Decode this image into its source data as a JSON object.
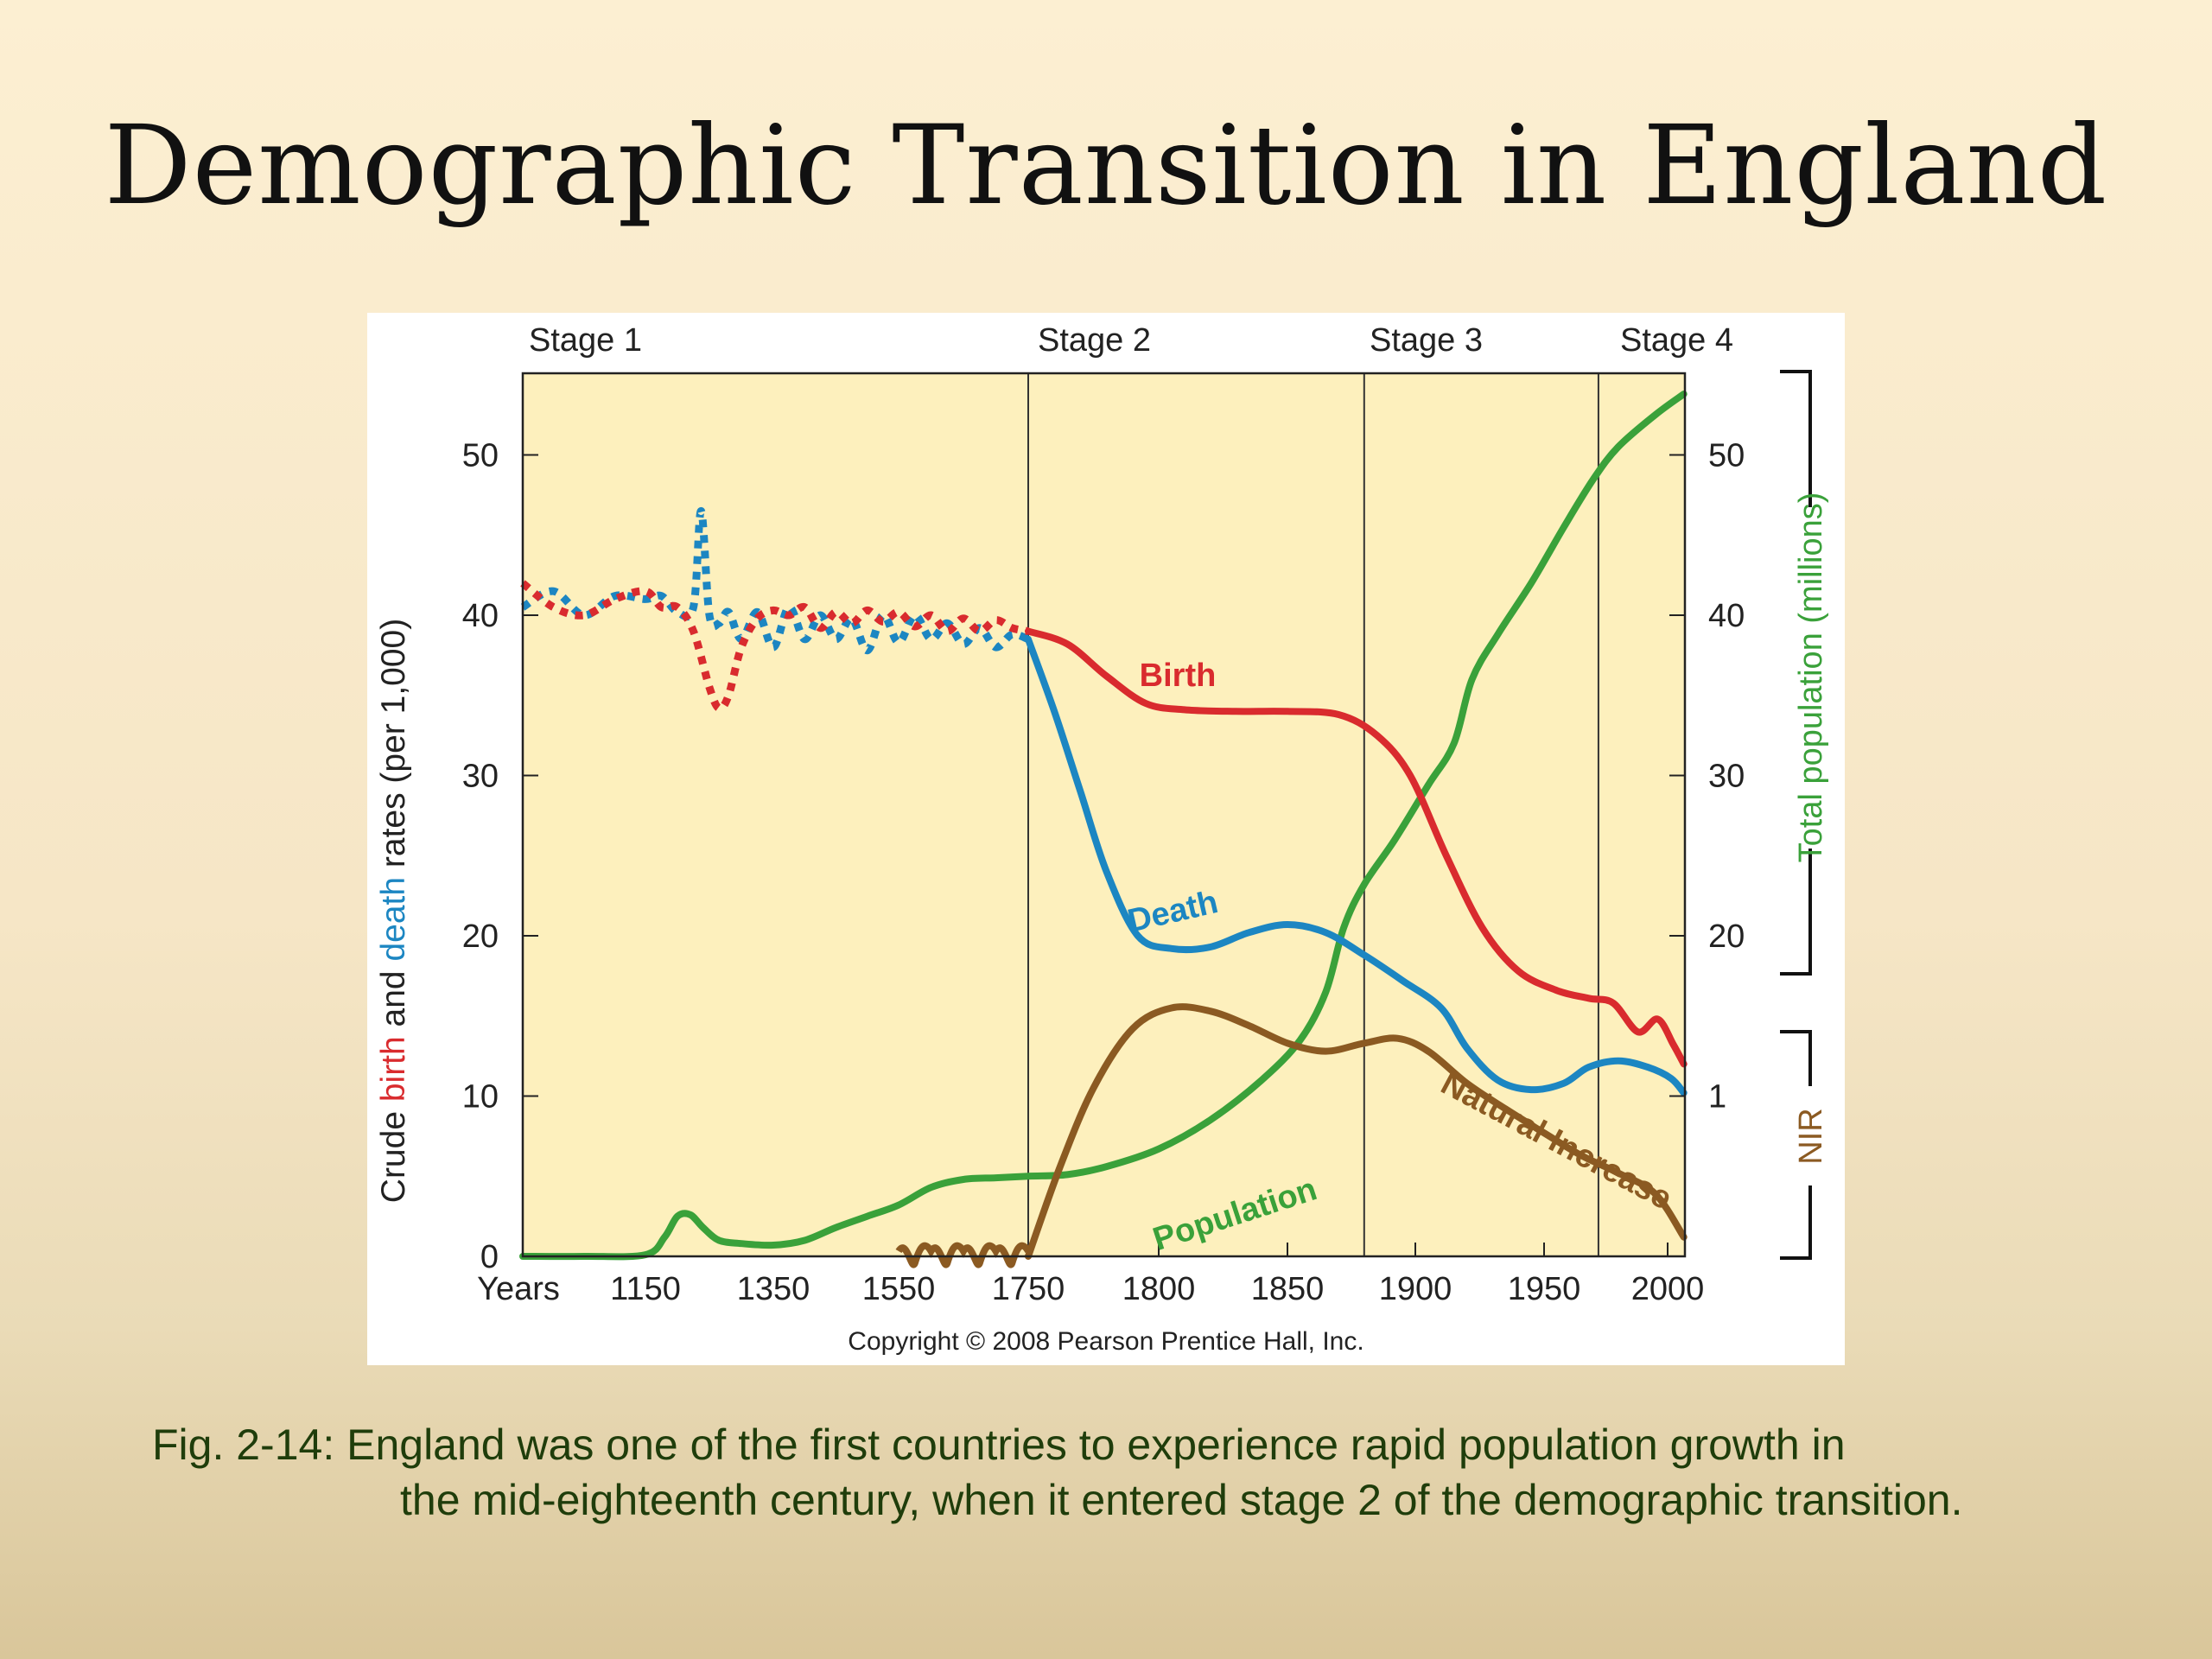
{
  "slide": {
    "title": "Demographic Transition in England",
    "caption_lead": "Fig. 2-14:  England was one of the first countries to experience rapid population growth in",
    "caption_rest": "the mid-eighteenth century, when it entered stage 2 of the demographic transition."
  },
  "colors": {
    "birth": "#d92b2e",
    "death": "#1c86c2",
    "population": "#3aa13a",
    "natural_increase": "#8b5a22",
    "plot_bg": "#fdf0bd",
    "axis": "#222222"
  },
  "chart_data": {
    "type": "line",
    "stages": [
      "Stage 1",
      "Stage 2",
      "Stage 3",
      "Stage 4"
    ],
    "stage_boundaries_years": [
      1750,
      1880,
      1972
    ],
    "x": {
      "label": "Years",
      "ticks": [
        "1150",
        "1350",
        "1550",
        "1750",
        "1800",
        "1850",
        "1900",
        "1950",
        "2000"
      ],
      "note": "axis segment 1050–1750 compressed; 1750–2015 expanded"
    },
    "y_left": {
      "label_parts": [
        "Crude ",
        "birth",
        " and ",
        "death",
        " rates (per 1,000)"
      ],
      "ticks": [
        "0",
        "10",
        "20",
        "30",
        "40",
        "50"
      ],
      "range": [
        0,
        55
      ]
    },
    "y_right_population": {
      "label": "Total population (millions)",
      "ticks": [
        "20",
        "30",
        "40",
        "50"
      ]
    },
    "y_right_nir": {
      "label": "NIR",
      "ticks": [
        "1"
      ]
    },
    "copyright": "Copyright © 2008 Pearson Prentice Hall, Inc.",
    "series": [
      {
        "name": "Birth",
        "dashed_until": 1750,
        "points": [
          [
            1050,
            42
          ],
          [
            1075,
            40.5
          ],
          [
            1100,
            40
          ],
          [
            1125,
            41
          ],
          [
            1150,
            41.5
          ],
          [
            1175,
            40.5
          ],
          [
            1200,
            40.5
          ],
          [
            1225,
            39
          ],
          [
            1250,
            35.5
          ],
          [
            1265,
            34.2
          ],
          [
            1280,
            35
          ],
          [
            1300,
            38
          ],
          [
            1325,
            39.8
          ],
          [
            1350,
            40.3
          ],
          [
            1375,
            40
          ],
          [
            1400,
            40.5
          ],
          [
            1425,
            39.2
          ],
          [
            1450,
            40.2
          ],
          [
            1475,
            39.5
          ],
          [
            1500,
            40.3
          ],
          [
            1525,
            39.6
          ],
          [
            1550,
            40.2
          ],
          [
            1575,
            39.3
          ],
          [
            1600,
            40
          ],
          [
            1625,
            39
          ],
          [
            1650,
            39.8
          ],
          [
            1675,
            39
          ],
          [
            1700,
            39.7
          ],
          [
            1725,
            39.2
          ],
          [
            1750,
            39
          ],
          [
            1765,
            38.2
          ],
          [
            1780,
            36.2
          ],
          [
            1795,
            34.5
          ],
          [
            1810,
            34.1
          ],
          [
            1830,
            34
          ],
          [
            1850,
            34
          ],
          [
            1870,
            33.8
          ],
          [
            1885,
            32.5
          ],
          [
            1898,
            30
          ],
          [
            1912,
            25
          ],
          [
            1926,
            20.5
          ],
          [
            1940,
            17.8
          ],
          [
            1955,
            16.6
          ],
          [
            1968,
            16.1
          ],
          [
            1978,
            15.8
          ],
          [
            1988,
            14
          ],
          [
            1996,
            14.8
          ],
          [
            2005,
            13.2
          ],
          [
            2014,
            12
          ]
        ]
      },
      {
        "name": "Death",
        "dashed_until": 1750,
        "points": [
          [
            1050,
            40.5
          ],
          [
            1075,
            41.5
          ],
          [
            1100,
            40
          ],
          [
            1125,
            41.2
          ],
          [
            1150,
            41
          ],
          [
            1175,
            41.2
          ],
          [
            1200,
            40.2
          ],
          [
            1225,
            40.5
          ],
          [
            1237,
            46.5
          ],
          [
            1250,
            40
          ],
          [
            1265,
            39.5
          ],
          [
            1280,
            40.2
          ],
          [
            1300,
            38.5
          ],
          [
            1325,
            40.2
          ],
          [
            1350,
            38
          ],
          [
            1375,
            40.5
          ],
          [
            1400,
            38.5
          ],
          [
            1425,
            40
          ],
          [
            1450,
            38.5
          ],
          [
            1475,
            39.8
          ],
          [
            1500,
            37.8
          ],
          [
            1525,
            40
          ],
          [
            1550,
            38.3
          ],
          [
            1575,
            40
          ],
          [
            1600,
            38.5
          ],
          [
            1625,
            39.5
          ],
          [
            1650,
            38.2
          ],
          [
            1675,
            39.2
          ],
          [
            1700,
            38
          ],
          [
            1725,
            38.8
          ],
          [
            1750,
            38.5
          ],
          [
            1760,
            34
          ],
          [
            1770,
            29
          ],
          [
            1780,
            24
          ],
          [
            1792,
            20
          ],
          [
            1805,
            19.2
          ],
          [
            1820,
            19.3
          ],
          [
            1835,
            20.2
          ],
          [
            1850,
            20.7
          ],
          [
            1865,
            20.2
          ],
          [
            1880,
            18.8
          ],
          [
            1895,
            17.2
          ],
          [
            1910,
            15.5
          ],
          [
            1920,
            13
          ],
          [
            1932,
            11
          ],
          [
            1945,
            10.4
          ],
          [
            1958,
            10.8
          ],
          [
            1968,
            11.8
          ],
          [
            1980,
            12.2
          ],
          [
            1992,
            11.8
          ],
          [
            2003,
            11.1
          ],
          [
            2014,
            10.2
          ]
        ]
      },
      {
        "name": "Population",
        "points": [
          [
            1050,
            0
          ],
          [
            1100,
            0
          ],
          [
            1150,
            0.1
          ],
          [
            1180,
            1.2
          ],
          [
            1200,
            2.5
          ],
          [
            1220,
            2.6
          ],
          [
            1240,
            1.8
          ],
          [
            1265,
            1
          ],
          [
            1300,
            0.8
          ],
          [
            1350,
            0.7
          ],
          [
            1400,
            1
          ],
          [
            1450,
            1.8
          ],
          [
            1500,
            2.5
          ],
          [
            1550,
            3.2
          ],
          [
            1600,
            4.3
          ],
          [
            1650,
            4.8
          ],
          [
            1700,
            4.9
          ],
          [
            1750,
            5
          ],
          [
            1765,
            5.1
          ],
          [
            1780,
            5.6
          ],
          [
            1800,
            6.7
          ],
          [
            1820,
            8.5
          ],
          [
            1840,
            11
          ],
          [
            1855,
            13.5
          ],
          [
            1865,
            16.5
          ],
          [
            1872,
            20.5
          ],
          [
            1880,
            23.2
          ],
          [
            1892,
            26
          ],
          [
            1905,
            29.4
          ],
          [
            1915,
            32
          ],
          [
            1922,
            36
          ],
          [
            1932,
            38.8
          ],
          [
            1945,
            42
          ],
          [
            1958,
            45.5
          ],
          [
            1970,
            48.5
          ],
          [
            1980,
            50.5
          ],
          [
            1995,
            52.5
          ],
          [
            2014,
            53.8
          ]
        ]
      },
      {
        "name": "Natural Increase",
        "wavy_until": 1750,
        "points": [
          [
            1550,
            0
          ],
          [
            1750,
            0
          ],
          [
            1762,
            5.5
          ],
          [
            1775,
            10.5
          ],
          [
            1790,
            14.2
          ],
          [
            1805,
            15.5
          ],
          [
            1820,
            15.3
          ],
          [
            1835,
            14.4
          ],
          [
            1850,
            13.3
          ],
          [
            1865,
            12.8
          ],
          [
            1880,
            13.3
          ],
          [
            1893,
            13.6
          ],
          [
            1905,
            12.8
          ],
          [
            1920,
            10.8
          ],
          [
            1935,
            9.2
          ],
          [
            1950,
            7.7
          ],
          [
            1965,
            6.3
          ],
          [
            1980,
            5.2
          ],
          [
            1995,
            3.9
          ],
          [
            2014,
            1.2
          ]
        ]
      }
    ],
    "annotations": [
      {
        "text": "Birth",
        "series": "Birth"
      },
      {
        "text": "Death",
        "series": "Death"
      },
      {
        "text": "Population",
        "series": "Population"
      },
      {
        "text": "Natural Increase",
        "series": "Natural Increase"
      }
    ]
  }
}
